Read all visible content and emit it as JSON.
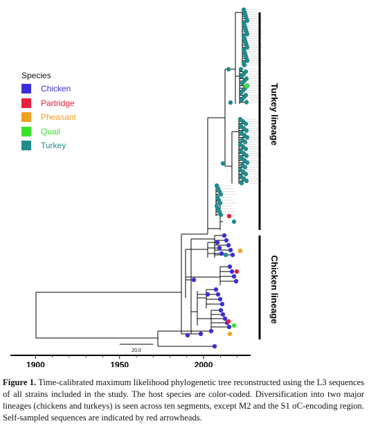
{
  "legend": {
    "title": "Species",
    "items": [
      {
        "label": "Chicken",
        "color": "#3b2ed6"
      },
      {
        "label": "Partridge",
        "color": "#e4203c"
      },
      {
        "label": "Pheasant",
        "color": "#f0a020"
      },
      {
        "label": "Quail",
        "color": "#39e22a"
      },
      {
        "label": "Turkey",
        "color": "#228b8b"
      }
    ]
  },
  "lineages": {
    "turkey": "Turkey lineage",
    "chicken": "Chicken lineage"
  },
  "axis": {
    "ticks": [
      1900,
      1950,
      2000
    ],
    "range": [
      1885,
      2028
    ]
  },
  "scale_bar": {
    "label": "20.0",
    "years": 20
  },
  "caption": {
    "label": "Figure 1.",
    "text": "Time-calibrated maximum likelihood phylogenetic tree reconstructed using the L3 sequences of all strains included in the study. The host species are color-coded. Diversification into two major lineages (chickens and turkeys) is seen across ten segments, except M2 and the S1 σC-encoding region. Self-sampled sequences are indicated by red arrowheads."
  }
}
